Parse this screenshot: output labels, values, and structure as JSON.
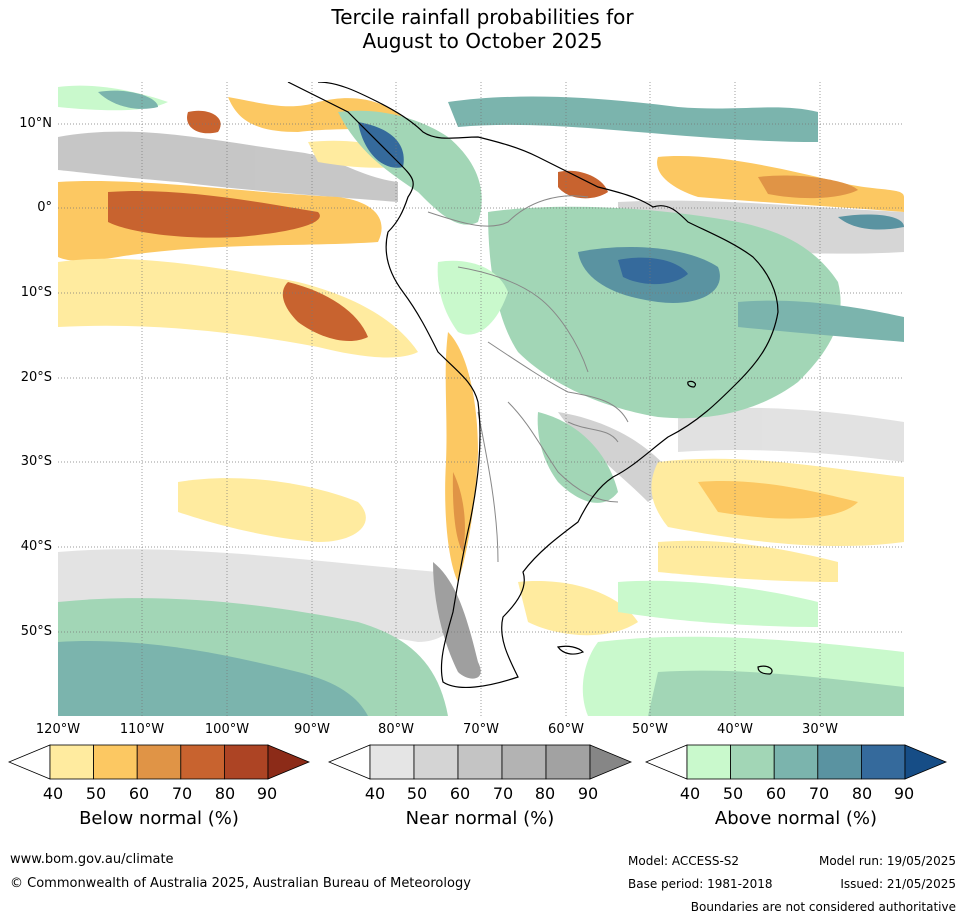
{
  "title_line1": "Tercile rainfall probabilities for",
  "title_line2": "August to October 2025",
  "lat_labels": [
    "10°N",
    "0°",
    "10°S",
    "20°S",
    "30°S",
    "40°S",
    "50°S"
  ],
  "lon_labels": [
    "120°W",
    "110°W",
    "100°W",
    "90°W",
    "80°W",
    "70°W",
    "60°W",
    "50°W",
    "40°W",
    "30°W"
  ],
  "legends": {
    "below": {
      "title": "Below normal (%)",
      "ticks": [
        "40",
        "50",
        "60",
        "70",
        "80",
        "90"
      ],
      "colors": [
        "#ffffff",
        "#ffeb9f",
        "#fcc862",
        "#e09446",
        "#c8632f",
        "#ad4424",
        "#8c2b18"
      ]
    },
    "near": {
      "title": "Near normal (%)",
      "ticks": [
        "40",
        "50",
        "60",
        "70",
        "80",
        "90"
      ],
      "colors": [
        "#ffffff",
        "#e5e5e5",
        "#d4d4d4",
        "#c4c4c4",
        "#b3b3b3",
        "#a2a2a2",
        "#868686"
      ]
    },
    "above": {
      "title": "Above normal (%)",
      "ticks": [
        "40",
        "50",
        "60",
        "70",
        "80",
        "90"
      ],
      "colors": [
        "#ffffff",
        "#c9f9cc",
        "#a2d6b6",
        "#7bb4ad",
        "#5a93a1",
        "#356a9c",
        "#164d86"
      ]
    }
  },
  "footer": {
    "website": "www.bom.gov.au/climate",
    "copyright": "© Commonwealth of Australia 2025, Australian Bureau of Meteorology",
    "model": "Model: ACCESS-S2",
    "base_period": "Base period: 1981-2018",
    "model_run": "Model run: 19/05/2025",
    "issued": "Issued: 21/05/2025",
    "disclaimer": "Boundaries are not considered authoritative"
  }
}
